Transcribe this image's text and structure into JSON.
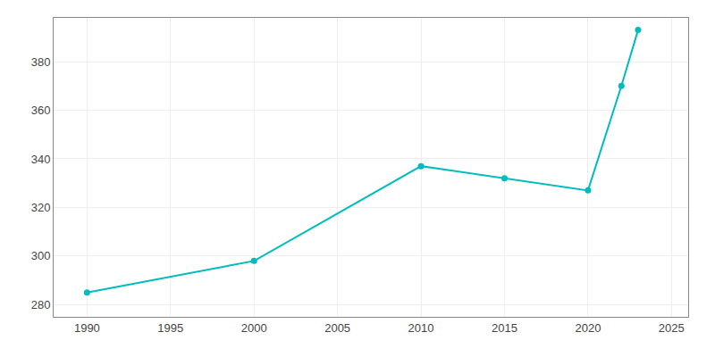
{
  "chart_data": {
    "type": "line",
    "x": [
      1990,
      2000,
      2010,
      2015,
      2020,
      2022,
      2023
    ],
    "values": [
      285,
      298,
      337,
      332,
      327,
      370,
      393
    ],
    "color": "#00BCBC",
    "marker": "circle",
    "xlim": [
      1988,
      2026
    ],
    "ylim": [
      275,
      398
    ],
    "xticks": [
      1990,
      1995,
      2000,
      2005,
      2010,
      2015,
      2020,
      2025
    ],
    "yticks": [
      280,
      300,
      320,
      340,
      360,
      380
    ],
    "grid": true
  }
}
